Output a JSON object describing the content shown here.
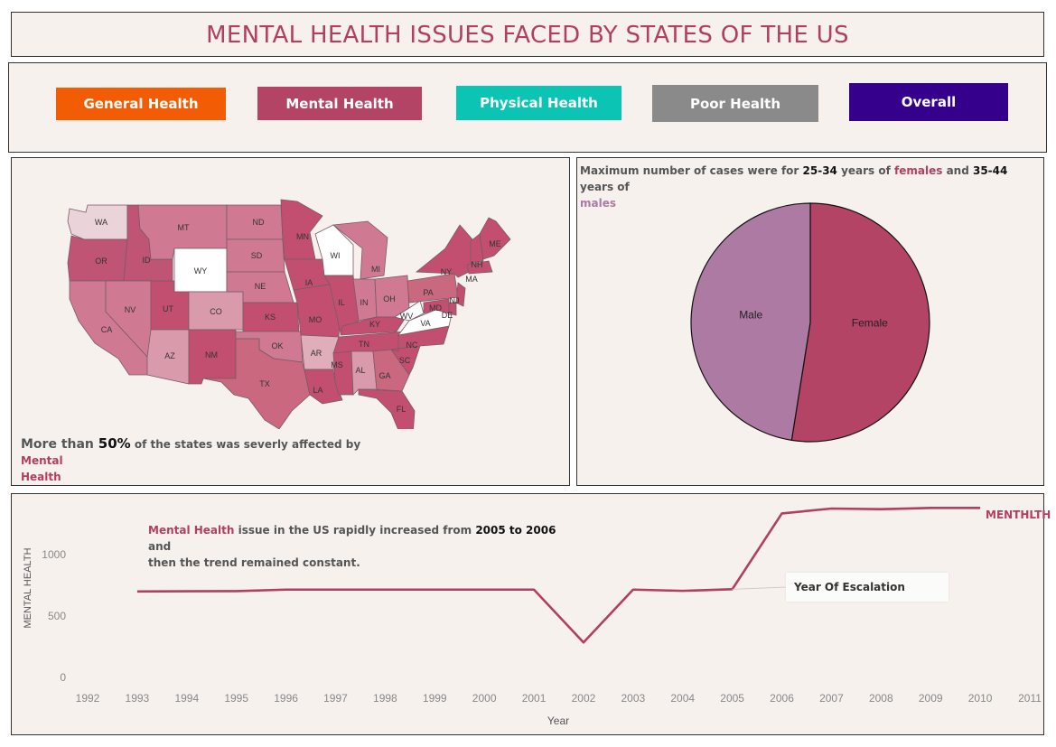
{
  "title": "MENTAL HEALTH ISSUES FACED BY STATES OF THE US",
  "colors": {
    "title": "#b03f62",
    "accent": "#b03f62",
    "male": "#ad7aa3",
    "panel_bg": "#f7f1ee"
  },
  "filters": [
    {
      "label": "General Health",
      "color": "#f25c05"
    },
    {
      "label": "Mental Health",
      "color": "#b34466"
    },
    {
      "label": "Physical Health",
      "color": "#0bc4b4"
    },
    {
      "label": "Poor Health",
      "color": "#8a8a8a"
    },
    {
      "label": "Overall",
      "color": "#35008c"
    }
  ],
  "map": {
    "states": [
      "WA",
      "MT",
      "ND",
      "MN",
      "OR",
      "ID",
      "WY",
      "SD",
      "WI",
      "MI",
      "ME",
      "NH",
      "MA",
      "NY",
      "NE",
      "IA",
      "NV",
      "UT",
      "CO",
      "IL",
      "IN",
      "OH",
      "PA",
      "NJ",
      "MD",
      "DE",
      "CA",
      "KS",
      "MO",
      "KY",
      "WV",
      "VA",
      "OK",
      "AR",
      "TN",
      "NC",
      "AZ",
      "NM",
      "SC",
      "MS",
      "AL",
      "GA",
      "TX",
      "LA",
      "FL"
    ],
    "note": {
      "prefix": "More than ",
      "pct": "50%",
      "mid": " of the states was severly affected by ",
      "accent1": "Mental",
      "accent2": "Health"
    }
  },
  "pie": {
    "note": {
      "p1": "Maximum number of cases were for ",
      "b1": "25-34",
      "p2": " years of ",
      "female": "females",
      "p3": " and ",
      "b2": "35-44",
      "p4": " years of",
      "male": "males"
    }
  },
  "line": {
    "note": {
      "accent": "Mental Health",
      "p1": " issue in the US rapidly increased from ",
      "bold": "2005 to 2006",
      "p2": " and",
      "line2": "then the trend remained constant."
    },
    "annotation": "Year Of Escalation",
    "series_label": "MENTHLTH"
  },
  "chart_data": [
    {
      "type": "pie",
      "title": "",
      "slices": [
        {
          "label": "Female",
          "value": 52.5,
          "color": "#b34466"
        },
        {
          "label": "Male",
          "value": 47.5,
          "color": "#ad7aa3"
        }
      ]
    },
    {
      "type": "line",
      "title": "",
      "xlabel": "Year",
      "ylabel": "MENTAL HEALTH",
      "x_ticks": [
        1992,
        1993,
        1994,
        1995,
        1996,
        1997,
        1998,
        1999,
        2000,
        2001,
        2002,
        2003,
        2004,
        2005,
        2006,
        2007,
        2008,
        2009,
        2010,
        2011
      ],
      "y_ticks": [
        0,
        500,
        1000
      ],
      "xlim": [
        1992,
        2011
      ],
      "series": [
        {
          "name": "MENTHLTH",
          "color": "#b03f62",
          "x": [
            1993,
            1994,
            1995,
            1996,
            1997,
            1998,
            1999,
            2000,
            2001,
            2002,
            2003,
            2004,
            2005,
            2006,
            2007,
            2008,
            2009,
            2010
          ],
          "y": [
            700,
            702,
            703,
            715,
            715,
            715,
            715,
            715,
            715,
            285,
            715,
            705,
            718,
            1335,
            1375,
            1370,
            1380,
            1380
          ]
        }
      ]
    }
  ]
}
